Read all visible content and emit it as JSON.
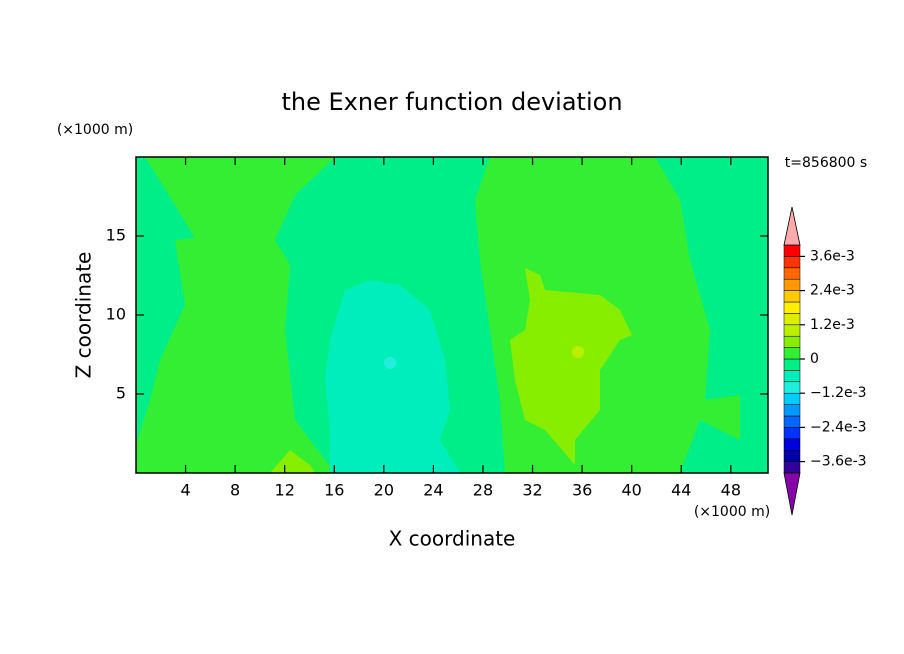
{
  "chart_data": {
    "type": "contour",
    "title": "the Exner function deviation",
    "x_label": "X coordinate",
    "y_label": "Z coordinate",
    "x_unit": "(×1000 m)",
    "y_unit": "(×1000 m)",
    "annotation": "t=856800 s",
    "xlim": [
      0,
      51
    ],
    "ylim": [
      0,
      20
    ],
    "xticks": [
      4,
      8,
      12,
      16,
      20,
      24,
      28,
      32,
      36,
      40,
      44,
      48
    ],
    "yticks": [
      5,
      10,
      15
    ],
    "colorbar": {
      "lim": [
        -0.004,
        0.004
      ],
      "ticks": [
        {
          "value": -0.0036,
          "label": "−3.6e-3"
        },
        {
          "value": -0.0024,
          "label": "−2.4e-3"
        },
        {
          "value": -0.0012,
          "label": "−1.2e-3"
        },
        0,
        {
          "value": 0.0012,
          "label": "1.2e-3"
        },
        {
          "value": 0.0024,
          "label": "2.4e-3"
        },
        {
          "value": 0.0036,
          "label": "3.6e-3"
        }
      ],
      "colors": [
        "#330099",
        "#0000aa",
        "#0000dd",
        "#0033ff",
        "#0066ff",
        "#0099ff",
        "#00ccff",
        "#22eedd",
        "#00eebb",
        "#00ee88",
        "#33ee33",
        "#88ee00",
        "#bbee00",
        "#ddee00",
        "#ffee00",
        "#ffcc00",
        "#ff9900",
        "#ff6600",
        "#ff3300",
        "#ff0000"
      ],
      "under_color": "#8800aa",
      "over_color": "#ffaaaa"
    }
  }
}
